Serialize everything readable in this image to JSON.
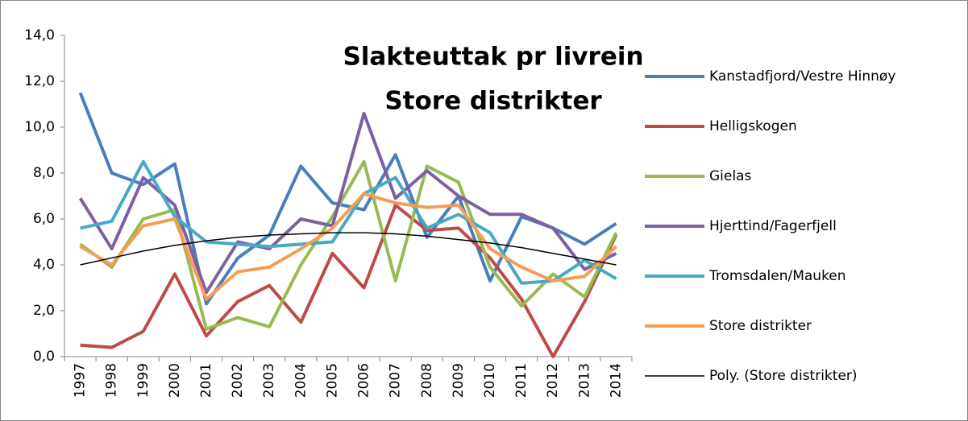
{
  "chart_data": {
    "type": "line",
    "title": "Slakteuttak pr livrein",
    "subtitle": "Store distrikter",
    "categories": [
      "1997",
      "1998",
      "1999",
      "2000",
      "2001",
      "2002",
      "2003",
      "2004",
      "2005",
      "2006",
      "2007",
      "2008",
      "2009",
      "2010",
      "2011",
      "2012",
      "2013",
      "2014"
    ],
    "ylim": [
      0,
      14
    ],
    "yticks": [
      {
        "value": 0,
        "label": "0,0"
      },
      {
        "value": 2,
        "label": "2,0"
      },
      {
        "value": 4,
        "label": "4,0"
      },
      {
        "value": 6,
        "label": "6,0"
      },
      {
        "value": 8,
        "label": "8,0"
      },
      {
        "value": 10,
        "label": "10,0"
      },
      {
        "value": 12,
        "label": "12,0"
      },
      {
        "value": 14,
        "label": "14,0"
      }
    ],
    "grid": false,
    "legend": "right",
    "series": [
      {
        "name": "Kanstadfjord/Vestre Hinnøy",
        "color": "#4a7ebb",
        "line_width": 4,
        "values": [
          11.5,
          8.0,
          7.5,
          8.4,
          2.3,
          4.3,
          5.3,
          8.3,
          6.7,
          6.4,
          8.8,
          5.2,
          7.0,
          3.3,
          6.1,
          5.6,
          4.9,
          5.8
        ]
      },
      {
        "name": "Helligskogen",
        "color": "#be4b48",
        "line_width": 4,
        "values": [
          0.5,
          0.4,
          1.1,
          3.6,
          0.9,
          2.4,
          3.1,
          1.5,
          4.5,
          3.0,
          6.6,
          5.5,
          5.6,
          4.3,
          2.5,
          0.0,
          2.4,
          5.3
        ]
      },
      {
        "name": "Gielas",
        "color": "#98b954",
        "line_width": 4,
        "values": [
          4.9,
          3.9,
          6.0,
          6.4,
          1.2,
          1.7,
          1.3,
          4.0,
          6.1,
          8.5,
          3.3,
          8.3,
          7.6,
          3.9,
          2.2,
          3.6,
          2.6,
          5.4
        ]
      },
      {
        "name": "Hjerttind/Fagerfjell",
        "color": "#7d60a0",
        "line_width": 4,
        "values": [
          6.9,
          4.7,
          7.8,
          6.6,
          2.8,
          5.0,
          4.7,
          6.0,
          5.7,
          10.6,
          6.9,
          8.1,
          7.0,
          6.2,
          6.2,
          5.6,
          3.8,
          4.5
        ]
      },
      {
        "name": "Tromsdalen/Mauken",
        "color": "#46aac5",
        "line_width": 4,
        "values": [
          5.6,
          5.9,
          8.5,
          6.1,
          5.0,
          4.9,
          4.8,
          4.9,
          5.0,
          7.1,
          7.8,
          5.6,
          6.2,
          5.4,
          3.2,
          3.3,
          4.2,
          3.4
        ]
      },
      {
        "name": "Store distrikter",
        "color": "#f59d56",
        "line_width": 4,
        "values": [
          4.8,
          4.0,
          5.7,
          6.0,
          2.5,
          3.7,
          3.9,
          4.7,
          5.6,
          7.1,
          6.7,
          6.5,
          6.6,
          4.7,
          3.9,
          3.3,
          3.5,
          4.8
        ]
      },
      {
        "name": "Poly. (Store distrikter)",
        "color": "#000000",
        "line_width": 1.5,
        "values": [
          4.0,
          4.3,
          4.6,
          4.85,
          5.05,
          5.2,
          5.3,
          5.35,
          5.4,
          5.4,
          5.35,
          5.25,
          5.1,
          4.95,
          4.75,
          4.5,
          4.25,
          4.0
        ]
      }
    ]
  }
}
